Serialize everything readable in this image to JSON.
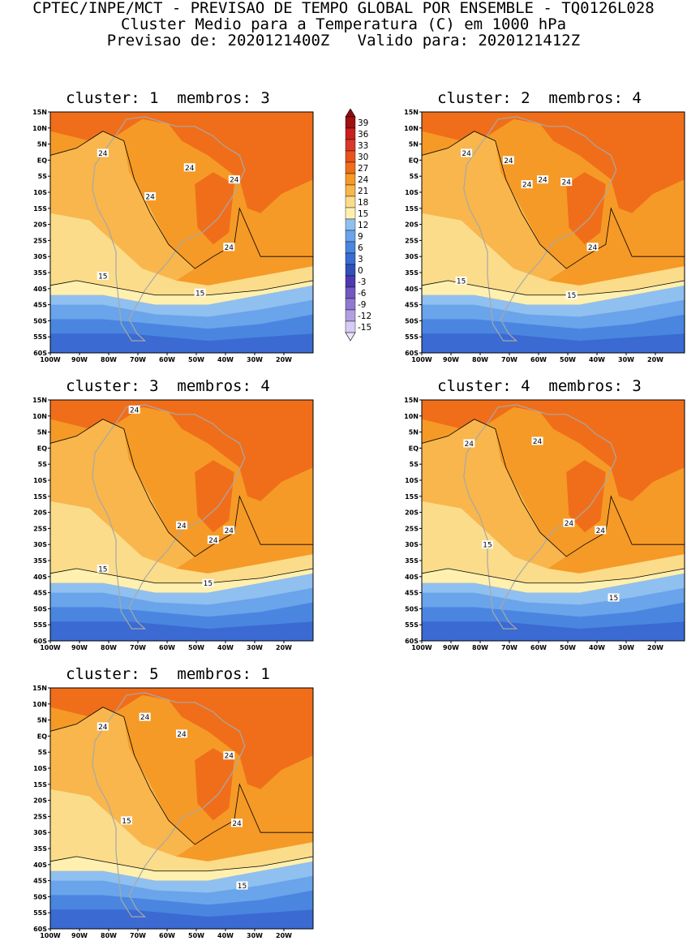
{
  "header": {
    "line1": "CPTEC/INPE/MCT - PREVISAO DE TEMPO GLOBAL POR ENSEMBLE - TQ0126L028",
    "line2": "Cluster Medio para a Temperatura (C) em 1000 hPa",
    "line3": "Previsao de: 2020121400Z   Valido para: 2020121412Z"
  },
  "panels": [
    {
      "title": "cluster: 1  membros: 3",
      "contour_labels": [
        "24",
        "24",
        "24",
        "24",
        "24",
        "15",
        "15"
      ]
    },
    {
      "title": "cluster: 2  membros: 4",
      "contour_labels": [
        "24",
        "24",
        "24",
        "24",
        "24",
        "24",
        "15",
        "15"
      ]
    },
    {
      "title": "cluster: 3  membros: 4",
      "contour_labels": [
        "24",
        "24",
        "24",
        "24",
        "15",
        "15"
      ]
    },
    {
      "title": "cluster: 4  membros: 3",
      "contour_labels": [
        "24",
        "24",
        "24",
        "24",
        "15",
        "15"
      ]
    },
    {
      "title": "cluster: 5  membros: 1",
      "contour_labels": [
        "24",
        "24",
        "24",
        "24",
        "24",
        "15",
        "15"
      ]
    }
  ],
  "axes": {
    "lat_labels": [
      "15N",
      "10N",
      "5N",
      "EQ",
      "5S",
      "10S",
      "15S",
      "20S",
      "25S",
      "30S",
      "35S",
      "40S",
      "45S",
      "50S",
      "55S",
      "60S"
    ],
    "lon_labels": [
      "100W",
      "90W",
      "80W",
      "70W",
      "60W",
      "50W",
      "40W",
      "30W",
      "20W"
    ]
  },
  "colorbar": {
    "labels": [
      "39",
      "36",
      "33",
      "30",
      "27",
      "24",
      "21",
      "18",
      "15",
      "12",
      "9",
      "6",
      "3",
      "0",
      "-3",
      "-6",
      "-9",
      "-12",
      "-15"
    ],
    "colors": [
      "#a01010",
      "#c8201e",
      "#d8392a",
      "#e8541c",
      "#f06e1a",
      "#f59a26",
      "#f8b64c",
      "#fbdc8a",
      "#fff0b0",
      "#8fc0f0",
      "#6aa4ea",
      "#4a86e0",
      "#3a6ad2",
      "#3050b8",
      "#4e3ab0",
      "#7058c0",
      "#9078d0",
      "#b0a0e0",
      "#d8ccf4"
    ],
    "top_color": "#8c0e10",
    "bottom_color": "#ece4fb"
  }
}
